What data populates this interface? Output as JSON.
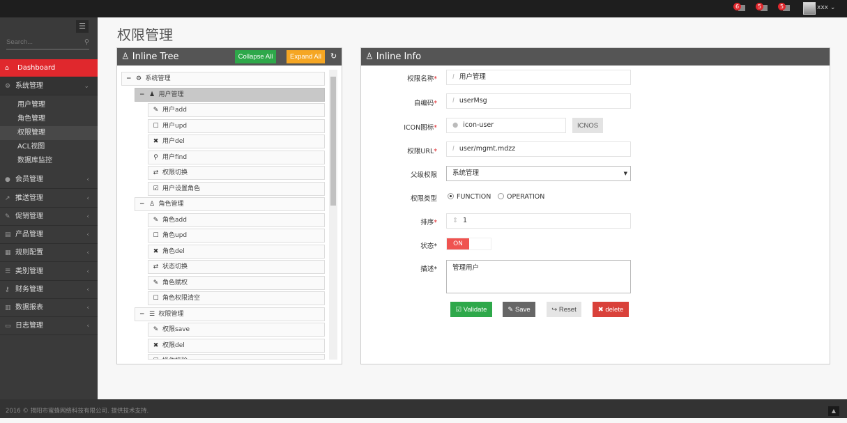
{
  "topbar": {
    "notifications": [
      {
        "count": "6",
        "icon": "bell-icon"
      },
      {
        "count": "5",
        "icon": "envelope-icon"
      },
      {
        "count": "5",
        "icon": "tasks-icon"
      }
    ],
    "user": "xxx"
  },
  "sidebar": {
    "search_placeholder": "Search...",
    "items": [
      {
        "label": "Dashboard",
        "icon": "home-icon",
        "active": true
      },
      {
        "label": "系统管理",
        "icon": "cogs-icon",
        "expanded": true,
        "children": [
          "用户管理",
          "角色管理",
          "权限管理",
          "ACL视图",
          "数据库监控"
        ],
        "selected_child": "权限管理"
      },
      {
        "label": "会员管理",
        "icon": "user-icon"
      },
      {
        "label": "推送管理",
        "icon": "share-icon"
      },
      {
        "label": "促销管理",
        "icon": "pencil-icon"
      },
      {
        "label": "产品管理",
        "icon": "book-icon"
      },
      {
        "label": "规则配置",
        "icon": "list-alt-icon"
      },
      {
        "label": "类别管理",
        "icon": "list-icon"
      },
      {
        "label": "财务管理",
        "icon": "key-icon"
      },
      {
        "label": "数据报表",
        "icon": "chart-icon"
      },
      {
        "label": "日志管理",
        "icon": "credit-card-icon"
      }
    ]
  },
  "page": {
    "title": "权限管理"
  },
  "tree": {
    "title": "Inline Tree",
    "collapse_all": "Collapse All",
    "expand_all": "Expand All",
    "root": "系统管理",
    "groups": [
      {
        "label": "用户管理",
        "icon": "user-icon",
        "items": [
          {
            "label": "用户add",
            "icon": "pencil-icon"
          },
          {
            "label": "用户upd",
            "icon": "edit-icon"
          },
          {
            "label": "用户del",
            "icon": "remove-icon"
          },
          {
            "label": "用户find",
            "icon": "search-icon"
          },
          {
            "label": "权限切换",
            "icon": "retweet-icon"
          },
          {
            "label": "用户设置角色",
            "icon": "check-icon"
          }
        ]
      },
      {
        "label": "角色管理",
        "icon": "sitemap-icon",
        "items": [
          {
            "label": "角色add",
            "icon": "pencil-icon"
          },
          {
            "label": "角色upd",
            "icon": "edit-icon"
          },
          {
            "label": "角色del",
            "icon": "remove-icon"
          },
          {
            "label": "状态切换",
            "icon": "retweet-icon"
          },
          {
            "label": "角色赋权",
            "icon": "pencil-icon"
          },
          {
            "label": "角色权限清空",
            "icon": "square-icon"
          }
        ]
      },
      {
        "label": "权限管理",
        "icon": "list-icon",
        "items": [
          {
            "label": "权限save",
            "icon": "pencil-icon"
          },
          {
            "label": "权限del",
            "icon": "remove-icon"
          },
          {
            "label": "操作校验",
            "icon": "edit-icon"
          }
        ]
      }
    ]
  },
  "info": {
    "title": "Inline Info",
    "name_label": "权限名称",
    "name_value": "用户管理",
    "code_label": "自编码",
    "code_value": "userMsg",
    "icon_label": "ICON图标",
    "icon_value": "icon-user",
    "icons_button": "ICNOS",
    "url_label": "权限URL",
    "url_value": "user/mgmt.mdzz",
    "parent_label": "父级权限",
    "parent_value": "系统管理",
    "type_label": "权限类型",
    "type_options": [
      "FUNCTION",
      "OPERATION"
    ],
    "type_selected": "FUNCTION",
    "order_label": "排序",
    "order_value": "1",
    "status_label": "状态",
    "status_value": "ON",
    "desc_label": "描述",
    "desc_value": "管理用户",
    "validate": "Validate",
    "save": "Save",
    "reset": "Reset",
    "delete": "delete",
    "colors": {
      "validate": "#2ea84a",
      "save": "#666666",
      "reset": "#e5e5e5",
      "delete": "#d9413a",
      "toggle_on": "#ef5350"
    }
  },
  "footer": {
    "text": "2016 © 揭阳市蜜蜂网络科技有限公司. 提供技术支持."
  }
}
